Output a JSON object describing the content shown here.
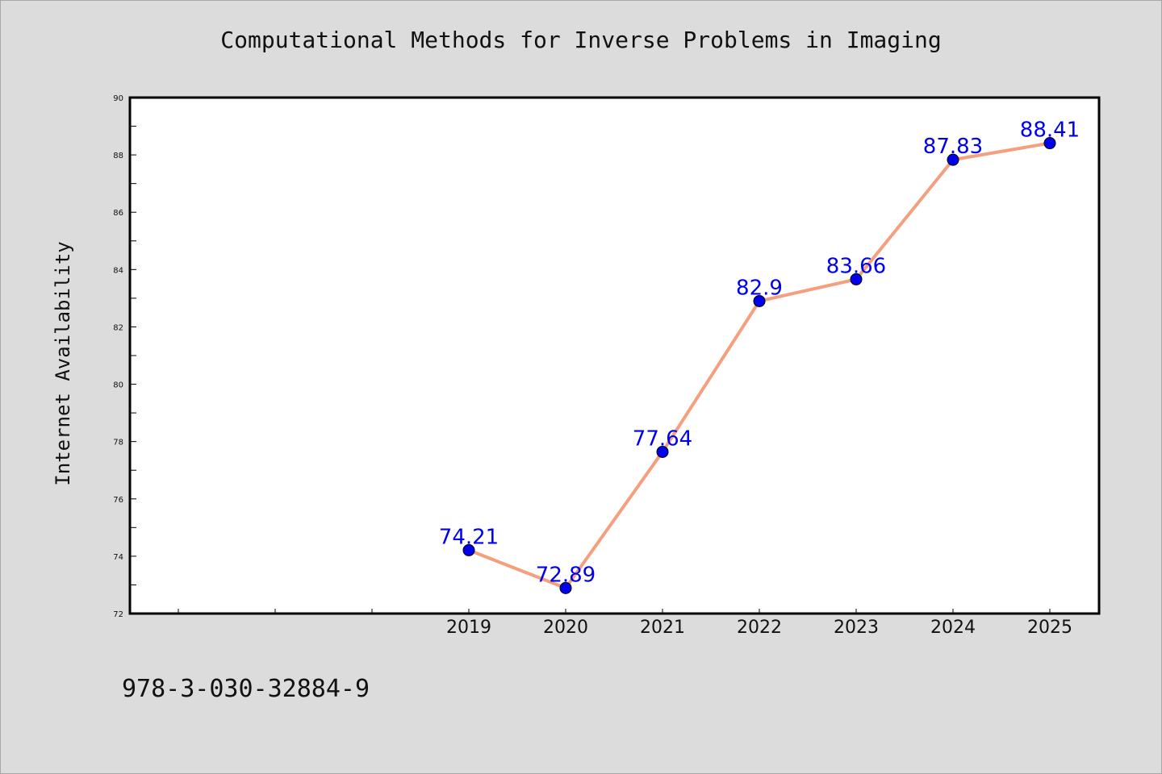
{
  "chart_data": {
    "type": "line",
    "title": "Computational Methods for Inverse Problems in Imaging",
    "xlabel": "",
    "ylabel": "Internet Availability",
    "categories": [
      "2019",
      "2020",
      "2021",
      "2022",
      "2023",
      "2024",
      "2025"
    ],
    "series": [
      {
        "values": [
          74.21,
          72.89,
          77.64,
          82.9,
          83.66,
          87.83,
          88.41
        ],
        "labels": [
          "74.21",
          "72.89",
          "77.64",
          "82.9",
          "83.66",
          "87.83",
          "88.41"
        ]
      }
    ],
    "ylim": [
      72,
      90
    ],
    "yticks": [
      72,
      74,
      76,
      78,
      80,
      82,
      84,
      86,
      88,
      90
    ],
    "grid": false,
    "legend": "none",
    "colors": {
      "line": "#f4a07e",
      "marker": "#0000ee",
      "label": "#0000ee"
    }
  },
  "footer": {
    "text": "978-3-030-32884-9"
  }
}
